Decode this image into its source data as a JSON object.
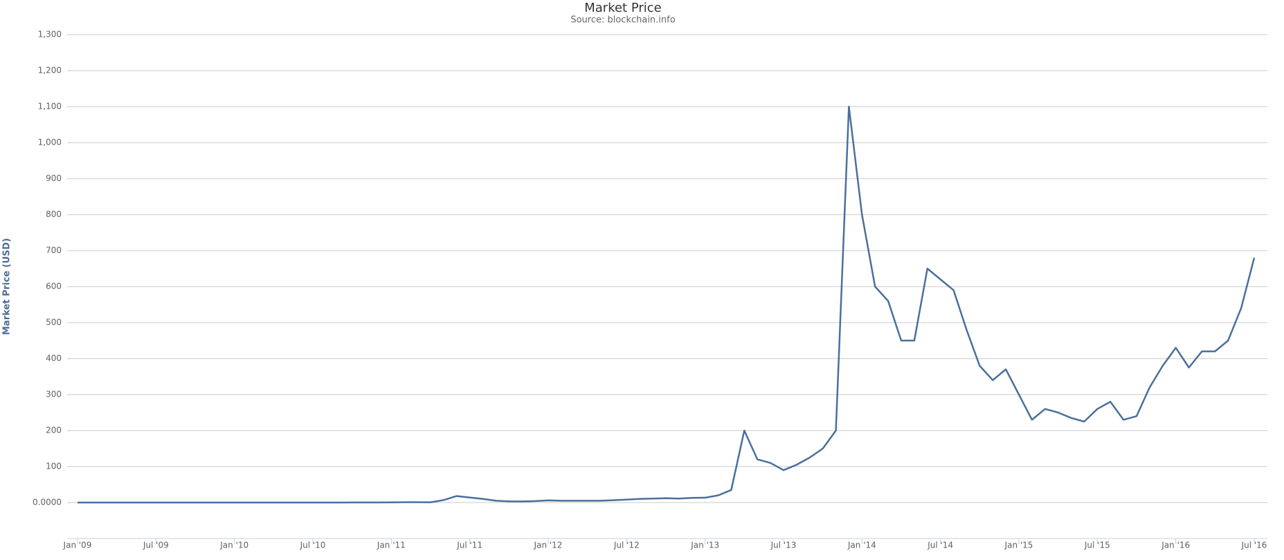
{
  "chart_data": {
    "type": "line",
    "title": "Market Price",
    "subtitle": "Source: blockchain.info",
    "y_label": "Market Price (USD)",
    "x": [
      "2009-01",
      "2009-02",
      "2009-03",
      "2009-04",
      "2009-05",
      "2009-06",
      "2009-07",
      "2009-08",
      "2009-09",
      "2009-10",
      "2009-11",
      "2009-12",
      "2010-01",
      "2010-02",
      "2010-03",
      "2010-04",
      "2010-05",
      "2010-06",
      "2010-07",
      "2010-08",
      "2010-09",
      "2010-10",
      "2010-11",
      "2010-12",
      "2011-01",
      "2011-02",
      "2011-03",
      "2011-04",
      "2011-05",
      "2011-06",
      "2011-07",
      "2011-08",
      "2011-09",
      "2011-10",
      "2011-11",
      "2011-12",
      "2012-01",
      "2012-02",
      "2012-03",
      "2012-04",
      "2012-05",
      "2012-06",
      "2012-07",
      "2012-08",
      "2012-09",
      "2012-10",
      "2012-11",
      "2012-12",
      "2013-01",
      "2013-02",
      "2013-03",
      "2013-04",
      "2013-05",
      "2013-06",
      "2013-07",
      "2013-08",
      "2013-09",
      "2013-10",
      "2013-11",
      "2013-12",
      "2014-01",
      "2014-02",
      "2014-03",
      "2014-04",
      "2014-05",
      "2014-06",
      "2014-07",
      "2014-08",
      "2014-09",
      "2014-10",
      "2014-11",
      "2014-12",
      "2015-01",
      "2015-02",
      "2015-03",
      "2015-04",
      "2015-05",
      "2015-06",
      "2015-07",
      "2015-08",
      "2015-09",
      "2015-10",
      "2015-11",
      "2015-12",
      "2016-01",
      "2016-02",
      "2016-03",
      "2016-04",
      "2016-05",
      "2016-06",
      "2016-07"
    ],
    "series": [
      {
        "name": "Market Price",
        "color": "#4a6f9c",
        "values": [
          0,
          0,
          0,
          0,
          0,
          0,
          0,
          0,
          0,
          0,
          0,
          0,
          0,
          0,
          0,
          0,
          0,
          0,
          0.07,
          0.07,
          0.06,
          0.1,
          0.28,
          0.25,
          0.3,
          0.9,
          0.9,
          0.8,
          7,
          18,
          14,
          10,
          5,
          3.5,
          3,
          4,
          6,
          5,
          5,
          5,
          5,
          6.5,
          8,
          10,
          11,
          12,
          11,
          13,
          13.5,
          20,
          35,
          200,
          120,
          110,
          90,
          105,
          125,
          150,
          200,
          1100,
          800,
          600,
          560,
          450,
          450,
          650,
          620,
          590,
          480,
          380,
          340,
          370,
          300,
          230,
          260,
          250,
          235,
          225,
          260,
          280,
          230,
          240,
          320,
          380,
          430,
          375,
          420,
          420,
          450,
          540,
          680
        ]
      }
    ],
    "xlim": [
      "2009-01",
      "2016-07"
    ],
    "xticks": [
      {
        "value": "2009-01",
        "label": "Jan '09"
      },
      {
        "value": "2009-07",
        "label": "Jul '09"
      },
      {
        "value": "2010-01",
        "label": "Jan '10"
      },
      {
        "value": "2010-07",
        "label": "Jul '10"
      },
      {
        "value": "2011-01",
        "label": "Jan '11"
      },
      {
        "value": "2011-07",
        "label": "Jul '11"
      },
      {
        "value": "2012-01",
        "label": "Jan '12"
      },
      {
        "value": "2012-07",
        "label": "Jul '12"
      },
      {
        "value": "2013-01",
        "label": "Jan '13"
      },
      {
        "value": "2013-07",
        "label": "Jul '13"
      },
      {
        "value": "2014-01",
        "label": "Jan '14"
      },
      {
        "value": "2014-07",
        "label": "Jul '14"
      },
      {
        "value": "2015-01",
        "label": "Jan '15"
      },
      {
        "value": "2015-07",
        "label": "Jul '15"
      },
      {
        "value": "2016-01",
        "label": "Jan '16"
      },
      {
        "value": "2016-07",
        "label": "Jul '16"
      }
    ],
    "ylim": [
      -100,
      1300
    ],
    "yticks": [
      {
        "value": 0,
        "label": "0.0000"
      },
      100,
      200,
      300,
      400,
      500,
      600,
      700,
      800,
      900,
      {
        "value": 1000,
        "label": "1,000"
      },
      {
        "value": 1100,
        "label": "1,100"
      },
      {
        "value": 1200,
        "label": "1,200"
      },
      {
        "value": 1300,
        "label": "1,300"
      }
    ],
    "grid": true
  }
}
